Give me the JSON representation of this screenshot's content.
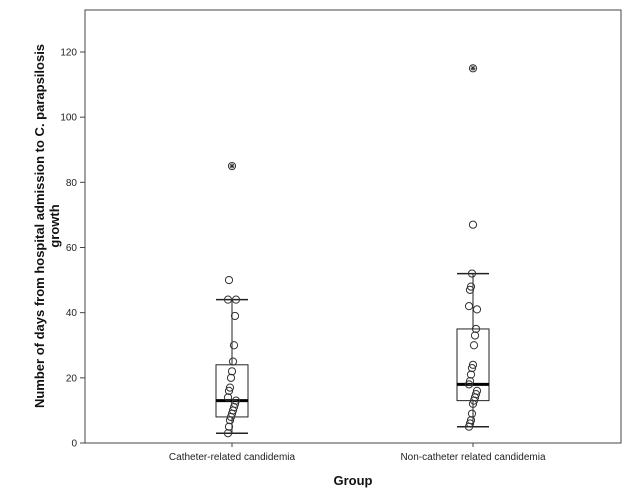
{
  "chart_data": {
    "type": "boxplot",
    "xlabel": "Group",
    "ylabel_lines": [
      "Number of days from hospital admission to C. parapsilosis",
      "growth"
    ],
    "ylim": [
      0,
      130
    ],
    "yticks": [
      0,
      20,
      40,
      60,
      80,
      100,
      120
    ],
    "grid": false,
    "categories": [
      "Catheter-related candidemia",
      "Non-catheter related candidemia"
    ],
    "groups": [
      {
        "category": "Catheter-related candidemia",
        "min": 3,
        "q1": 8,
        "median": 13,
        "q3": 24,
        "max": 44,
        "points": [
          3,
          5,
          7,
          8,
          9,
          10,
          11,
          12,
          13,
          14,
          16,
          17,
          20,
          22,
          25,
          30,
          39,
          44,
          44,
          50
        ],
        "extremes": [
          85
        ]
      },
      {
        "category": "Non-catheter related candidemia",
        "min": 5,
        "q1": 13,
        "median": 18,
        "q3": 35,
        "max": 52,
        "points": [
          5,
          6,
          7,
          9,
          12,
          13,
          14,
          15,
          16,
          18,
          19,
          21,
          23,
          24,
          30,
          33,
          35,
          41,
          42,
          47,
          48,
          52,
          67
        ],
        "extremes": [
          115
        ]
      }
    ]
  }
}
